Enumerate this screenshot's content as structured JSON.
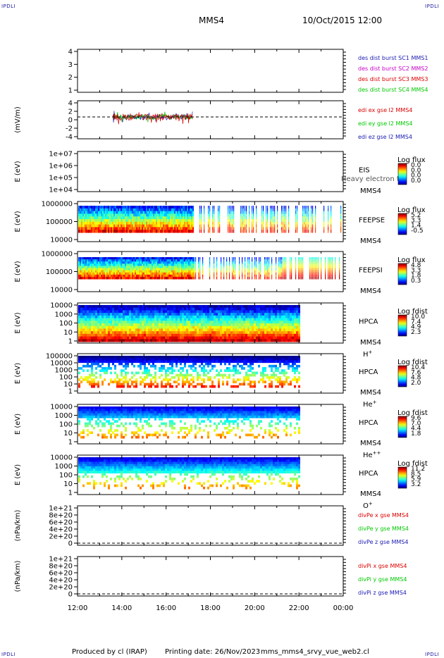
{
  "corner_label": "IPDLI",
  "header": {
    "spacecraft": "MMS4",
    "datetime": "10/Oct/2015 12:00"
  },
  "footer": {
    "producer": "Produced by cl (IRAP)",
    "printing": "Printing date: 26/Nov/2023",
    "file": "mms_mms4_srvy_vue_web2.cl"
  },
  "colors": {
    "blue": "#1a1ab4",
    "magenta": "#c800c8",
    "red": "#dc0000",
    "green": "#00c800"
  },
  "chart_data": [
    {
      "type": "line",
      "id": "p1",
      "ylabel": "",
      "yticks": [
        "1",
        "2",
        "3",
        "4"
      ],
      "ylim": [
        1,
        4
      ],
      "legend": [
        {
          "text": "des dist burst SC1 MMS1",
          "color": "#1a1ab4"
        },
        {
          "text": "des dist burst SC2 MMS2",
          "color": "#c800c8"
        },
        {
          "text": "des dist burst SC3 MMS3",
          "color": "#dc0000"
        },
        {
          "text": "des dist burst SC4 MMS4",
          "color": "#00c800"
        }
      ]
    },
    {
      "type": "line",
      "id": "p2",
      "ylabel": "(mV/m)",
      "yticks": [
        "-4",
        "-2",
        "0",
        "2",
        "4"
      ],
      "ylim": [
        -5,
        5
      ],
      "zero_line": true,
      "x_range_hours": [
        13.6,
        17.2
      ],
      "legend": [
        {
          "text": "edi ex gse l2 MMS4",
          "color": "#dc0000"
        },
        {
          "text": "edi ey gse l2 MMS4",
          "color": "#00c800"
        },
        {
          "text": "edi ez gse l2 MMS4",
          "color": "#1a1ab4"
        }
      ]
    },
    {
      "type": "heatmap",
      "id": "p3",
      "ylabel": "E (eV)",
      "yticks": [
        "1e+04",
        "1e+05",
        "1e+06",
        "1e+07"
      ],
      "empty": true,
      "labels": [
        "EIS",
        "MMS4"
      ],
      "overlay": "Heavy electron to",
      "cb_title": "Log flux",
      "cb_ticks": [
        "0.0",
        "0.0",
        "0.0",
        "0.0"
      ]
    },
    {
      "type": "heatmap",
      "id": "p4",
      "ylabel": "E (eV)",
      "yticks": [
        "10000",
        "100000",
        "1000000"
      ],
      "labels": [
        "FEEPSE",
        "MMS4"
      ],
      "cb_title": "Log flux",
      "cb_ticks": [
        "5.2",
        "3.3",
        "1.4",
        "-0.5"
      ]
    },
    {
      "type": "heatmap",
      "id": "p5",
      "ylabel": "E (eV)",
      "yticks": [
        "10000",
        "100000",
        "1000000"
      ],
      "labels": [
        "FEEPSI",
        "MMS4"
      ],
      "cb_title": "Log flux",
      "cb_ticks": [
        "4.8",
        "3.3",
        "1.8",
        "0.3"
      ]
    },
    {
      "type": "heatmap",
      "id": "p6",
      "ylabel": "E (eV)",
      "yticks": [
        "1",
        "10",
        "100",
        "1000",
        "10000"
      ],
      "labels": [
        "HPCA",
        "MMS4"
      ],
      "species": "H",
      "species_sup": "+",
      "cb_title": "Log fdist",
      "cb_ticks": [
        "10.0",
        "7.4",
        "4.9",
        "2.3"
      ]
    },
    {
      "type": "heatmap",
      "id": "p7",
      "ylabel": "E (eV)",
      "yticks": [
        "1",
        "10",
        "100",
        "1000",
        "10000",
        "100000"
      ],
      "labels": [
        "HPCA",
        "MMS4"
      ],
      "species": "He",
      "species_sup": "+",
      "cb_title": "Log fdist",
      "cb_ticks": [
        "10.4",
        "7.6",
        "4.8",
        "2.0"
      ]
    },
    {
      "type": "heatmap",
      "id": "p8",
      "ylabel": "E (eV)",
      "yticks": [
        "1",
        "10",
        "100",
        "1000",
        "10000"
      ],
      "labels": [
        "HPCA",
        "MMS4"
      ],
      "species": "He",
      "species_sup": "++",
      "cb_title": "Log fdist",
      "cb_ticks": [
        "9.6",
        "7.0",
        "4.4",
        "1.8"
      ]
    },
    {
      "type": "heatmap",
      "id": "p9",
      "ylabel": "E (eV)",
      "yticks": [
        "1",
        "10",
        "100",
        "1000",
        "10000"
      ],
      "labels": [
        "HPCA",
        "MMS4"
      ],
      "species": "O",
      "species_sup": "+",
      "cb_title": "Log fdist",
      "cb_ticks": [
        "11.2",
        "8.5",
        "5.9",
        "3.2"
      ]
    },
    {
      "type": "line",
      "id": "p10",
      "ylabel": "(nPa/km)",
      "yticks": [
        "0",
        "2e+20",
        "4e+20",
        "6e+20",
        "8e+20",
        "1e+21"
      ],
      "zero_line": true,
      "legend": [
        {
          "text": "divPe x gse MMS4",
          "color": "#dc0000"
        },
        {
          "text": "divPe y gse MMS4",
          "color": "#00c800"
        },
        {
          "text": "divPe z gse MMS4",
          "color": "#1a1ab4"
        }
      ]
    },
    {
      "type": "line",
      "id": "p11",
      "ylabel": "(nPa/km)",
      "yticks": [
        "0",
        "2e+20",
        "4e+20",
        "6e+20",
        "8e+20",
        "1e+21"
      ],
      "zero_line": true,
      "legend": [
        {
          "text": "divPi x gse MMS4",
          "color": "#dc0000"
        },
        {
          "text": "divPi y gse MMS4",
          "color": "#00c800"
        },
        {
          "text": "divPi z gse MMS4",
          "color": "#1a1ab4"
        }
      ]
    }
  ],
  "x_axis": {
    "ticks": [
      "12:00",
      "14:00",
      "16:00",
      "18:00",
      "20:00",
      "22:00",
      "00:00"
    ],
    "range_hours": [
      12,
      24
    ],
    "hpca_end_hour": 22
  }
}
